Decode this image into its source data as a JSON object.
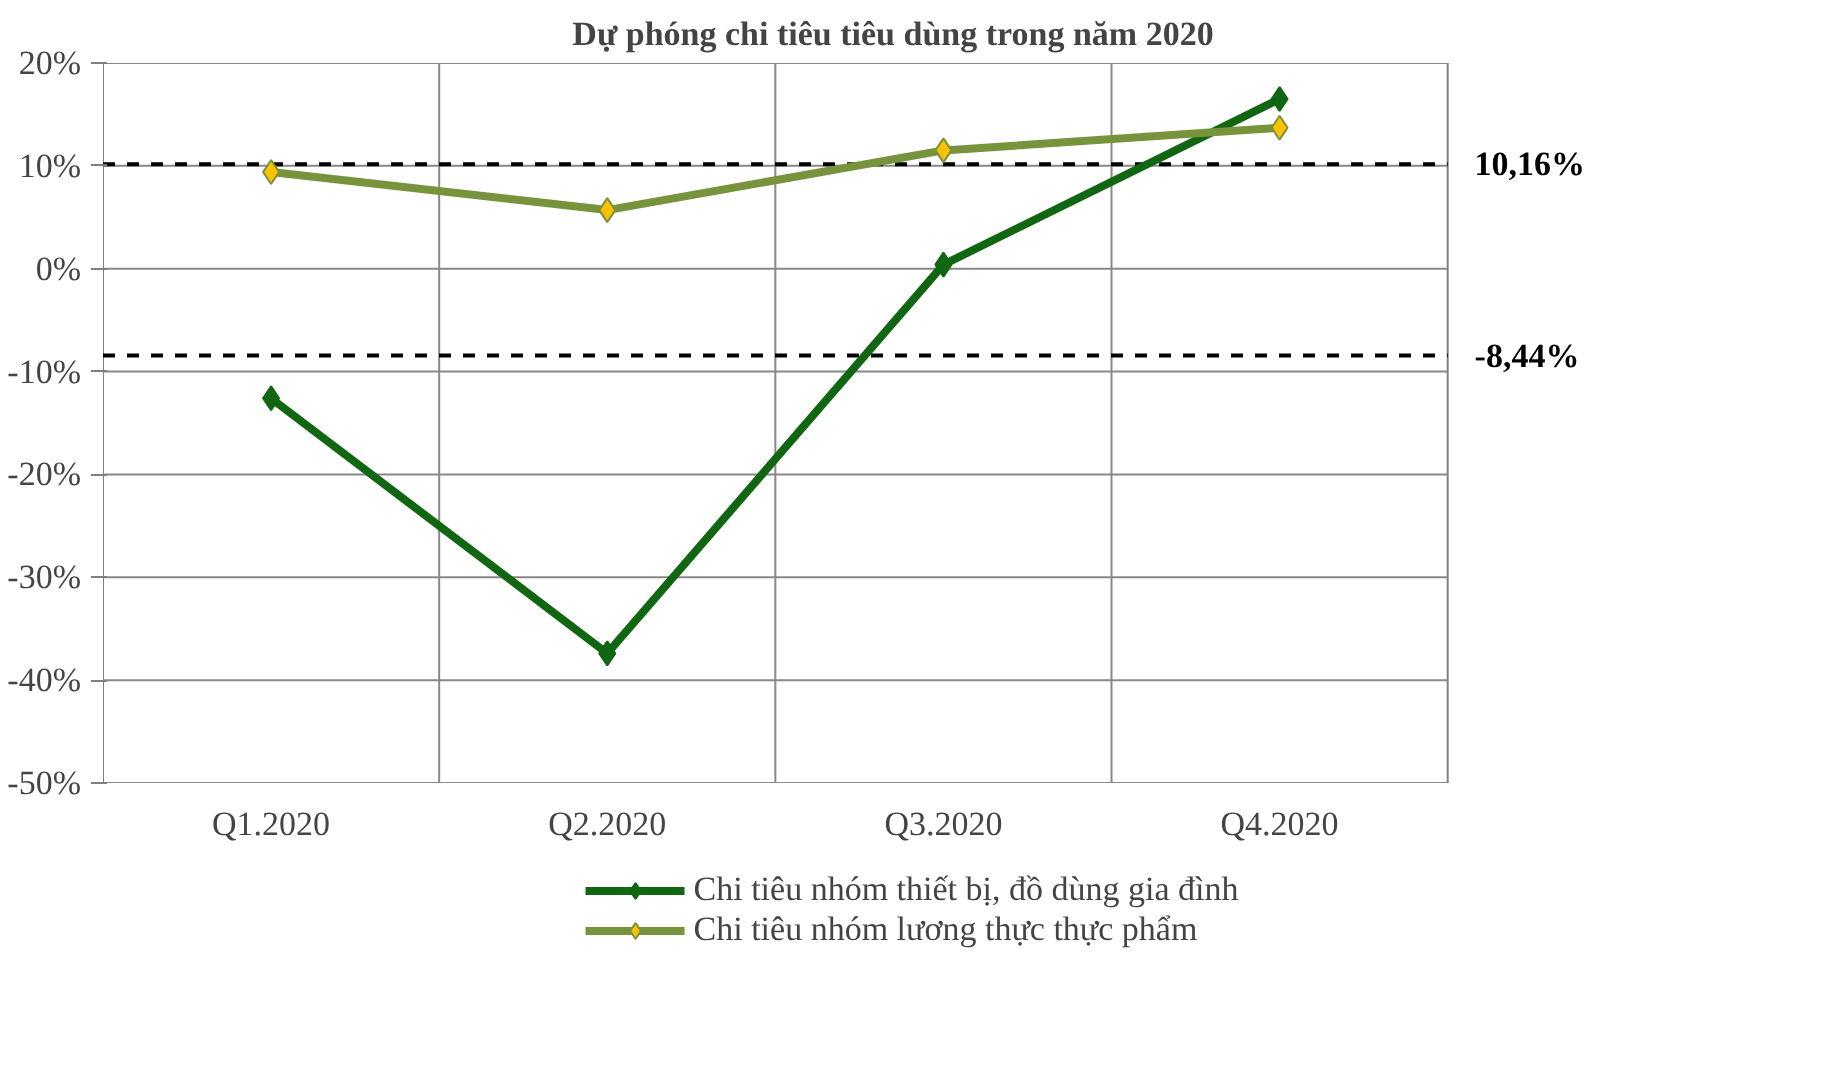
{
  "chart_data": {
    "type": "line",
    "title": "Dự phóng chi tiêu tiêu dùng trong năm 2020",
    "categories": [
      "Q1.2020",
      "Q2.2020",
      "Q3.2020",
      "Q4.2020"
    ],
    "series": [
      {
        "name": "Chi tiêu nhóm thiết bị, đồ dùng gia đình",
        "color": "#116611",
        "values": [
          -12.6,
          -37.4,
          0.4,
          16.5
        ]
      },
      {
        "name": "Chi tiêu nhóm lương thực thực phẩm",
        "color": "#77933c",
        "values": [
          9.4,
          5.7,
          11.5,
          13.7
        ]
      }
    ],
    "ylim": [
      -50,
      20
    ],
    "yticks": [
      {
        "value": -50,
        "label": "-50%"
      },
      {
        "value": -40,
        "label": "-40%"
      },
      {
        "value": -30,
        "label": "-30%"
      },
      {
        "value": -20,
        "label": "-20%"
      },
      {
        "value": -10,
        "label": "-10%"
      },
      {
        "value": 0,
        "label": "0%"
      },
      {
        "value": 10,
        "label": "10%"
      },
      {
        "value": 20,
        "label": "20%"
      }
    ],
    "ref_lines": [
      {
        "axis": "y",
        "value": 10.16,
        "label": "10,16%",
        "color": "#000000",
        "line_style": "dashed"
      },
      {
        "axis": "y",
        "value": -8.44,
        "label": "-8,44%",
        "color": "#000000",
        "line_style": "dashed"
      }
    ],
    "grid": true,
    "legend": "bottom",
    "marker": "diamond",
    "line_style": "solid"
  }
}
